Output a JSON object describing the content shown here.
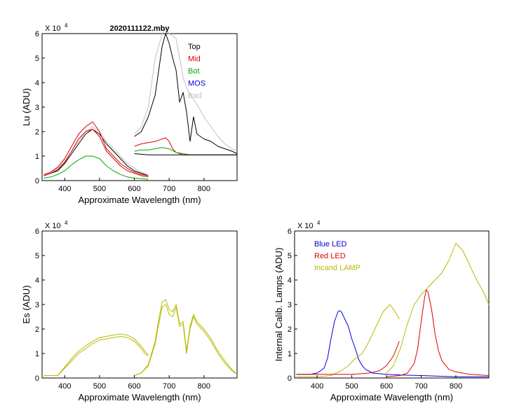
{
  "chart_data": [
    {
      "id": "lu",
      "type": "line",
      "title": "2020111122.mby",
      "xlabel": "Approximate Wavelength (nm)",
      "ylabel": "Lu (ADU)",
      "exponent_base": "X 10",
      "exponent_power": "4",
      "xlim": [
        335,
        895
      ],
      "ylim": [
        0,
        6
      ],
      "xticks": [
        400,
        500,
        600,
        700,
        800
      ],
      "yticks": [
        0,
        1,
        2,
        3,
        4,
        5,
        6
      ],
      "legend": [
        {
          "label": "Top",
          "color": "#000000"
        },
        {
          "label": "Mid",
          "color": "#dd0000"
        },
        {
          "label": "Bot",
          "color": "#00aa00"
        },
        {
          "label": "MOS",
          "color": "#0000dd"
        },
        {
          "label": "Bad",
          "color": "#c0c0c0"
        }
      ],
      "series": [
        {
          "name": "Bad",
          "color": "#c0c0c0",
          "x": [
            600,
            620,
            640,
            660,
            680,
            690,
            700,
            710,
            720,
            730,
            740,
            750,
            760,
            780,
            800,
            820,
            840,
            860,
            880,
            895
          ],
          "y": [
            1.9,
            2.2,
            3.0,
            5.0,
            6.0,
            6.2,
            6.0,
            5.9,
            5.8,
            5.0,
            4.2,
            3.8,
            3.5,
            3.1,
            2.6,
            2.2,
            1.8,
            1.5,
            1.3,
            1.2
          ]
        },
        {
          "name": "Top",
          "color": "#000000",
          "x": [
            600,
            620,
            640,
            660,
            680,
            690,
            700,
            710,
            720,
            730,
            740,
            750,
            760,
            770,
            780,
            800,
            820,
            840,
            860,
            880,
            895
          ],
          "y": [
            1.8,
            2.0,
            2.6,
            3.5,
            5.5,
            6.0,
            5.6,
            5.0,
            4.5,
            3.2,
            3.6,
            2.8,
            1.6,
            2.6,
            1.9,
            1.7,
            1.6,
            1.4,
            1.3,
            1.2,
            1.1
          ]
        },
        {
          "name": "Top",
          "color": "#000000",
          "x": [
            340,
            360,
            380,
            400,
            420,
            440,
            460,
            480,
            500,
            520,
            540,
            560,
            580,
            600,
            620,
            640
          ],
          "y": [
            0.2,
            0.3,
            0.4,
            0.7,
            1.1,
            1.5,
            1.9,
            2.1,
            1.9,
            1.5,
            1.2,
            0.9,
            0.6,
            0.4,
            0.3,
            0.2
          ]
        },
        {
          "name": "Bad",
          "color": "#c0c0c0",
          "x": [
            340,
            360,
            380,
            400,
            420,
            440,
            460,
            480,
            500,
            520,
            540,
            560,
            580,
            600,
            620,
            640
          ],
          "y": [
            0.25,
            0.35,
            0.5,
            0.8,
            1.2,
            1.6,
            2.0,
            2.2,
            2.0,
            1.6,
            1.3,
            1.0,
            0.7,
            0.5,
            0.35,
            0.25
          ]
        },
        {
          "name": "Mid",
          "color": "#dd0000",
          "x": [
            340,
            360,
            380,
            400,
            420,
            440,
            460,
            480,
            500,
            520,
            540,
            560,
            580,
            600,
            620,
            640
          ],
          "y": [
            0.25,
            0.35,
            0.55,
            0.9,
            1.4,
            1.9,
            2.2,
            2.4,
            2.0,
            1.3,
            1.0,
            0.7,
            0.5,
            0.35,
            0.25,
            0.2
          ]
        },
        {
          "name": "Mid",
          "color": "#dd0000",
          "x": [
            340,
            360,
            380,
            400,
            420,
            440,
            460,
            480,
            500,
            520,
            540,
            560,
            580,
            600,
            620,
            640
          ],
          "y": [
            0.2,
            0.3,
            0.45,
            0.75,
            1.2,
            1.7,
            2.0,
            2.1,
            1.8,
            1.2,
            0.9,
            0.6,
            0.4,
            0.3,
            0.2,
            0.15
          ]
        },
        {
          "name": "Bot",
          "color": "#00aa00",
          "x": [
            340,
            360,
            380,
            400,
            420,
            440,
            460,
            480,
            500,
            520,
            540,
            560,
            580,
            600,
            620,
            640
          ],
          "y": [
            0.1,
            0.15,
            0.25,
            0.4,
            0.65,
            0.85,
            1.0,
            1.0,
            0.9,
            0.6,
            0.4,
            0.25,
            0.15,
            0.1,
            0.08,
            0.05
          ]
        },
        {
          "name": "Mid",
          "color": "#dd0000",
          "x": [
            600,
            620,
            640,
            660,
            670,
            680,
            690,
            700,
            710,
            720,
            730,
            740,
            760,
            780,
            800,
            820,
            840,
            860,
            880,
            895
          ],
          "y": [
            1.4,
            1.5,
            1.55,
            1.6,
            1.65,
            1.7,
            1.75,
            1.6,
            1.3,
            1.15,
            1.1,
            1.05,
            1.05,
            1.05,
            1.05,
            1.05,
            1.05,
            1.05,
            1.05,
            1.05
          ]
        },
        {
          "name": "Bot",
          "color": "#00aa00",
          "x": [
            600,
            620,
            640,
            660,
            680,
            700,
            720,
            740,
            760,
            780,
            800,
            820,
            840,
            860,
            880,
            895
          ],
          "y": [
            1.2,
            1.25,
            1.25,
            1.3,
            1.35,
            1.3,
            1.15,
            1.1,
            1.05,
            1.05,
            1.05,
            1.05,
            1.05,
            1.05,
            1.05,
            1.05
          ]
        },
        {
          "name": "MOS",
          "color": "#000000",
          "x": [
            600,
            640,
            680,
            720,
            760,
            800,
            840,
            880,
            895
          ],
          "y": [
            1.1,
            1.05,
            1.05,
            1.05,
            1.05,
            1.05,
            1.05,
            1.05,
            1.05
          ]
        }
      ]
    },
    {
      "id": "es",
      "type": "line",
      "title": "",
      "xlabel": "Approximate Wavelength (nm)",
      "ylabel": "Es  (ADU)",
      "exponent_base": "X 10",
      "exponent_power": "4",
      "xlim": [
        335,
        895
      ],
      "ylim": [
        0,
        6
      ],
      "xticks": [
        400,
        500,
        600,
        700,
        800
      ],
      "yticks": [
        0,
        1,
        2,
        3,
        4,
        5,
        6
      ],
      "legend": [],
      "series": [
        {
          "name": "Es",
          "color": "#b8b800",
          "x": [
            340,
            380,
            400,
            420,
            440,
            460,
            480,
            500,
            520,
            540,
            560,
            580,
            600,
            620,
            630,
            640
          ],
          "y": [
            0.1,
            0.1,
            0.4,
            0.7,
            1.0,
            1.2,
            1.4,
            1.55,
            1.6,
            1.65,
            1.7,
            1.65,
            1.5,
            1.2,
            1.0,
            0.9
          ]
        },
        {
          "name": "Es",
          "color": "#b8b800",
          "x": [
            340,
            380,
            400,
            420,
            440,
            460,
            480,
            500,
            520,
            540,
            560,
            580,
            600,
            620,
            630,
            640
          ],
          "y": [
            0.1,
            0.1,
            0.45,
            0.8,
            1.1,
            1.3,
            1.5,
            1.65,
            1.7,
            1.75,
            1.8,
            1.75,
            1.6,
            1.3,
            1.1,
            0.95
          ]
        },
        {
          "name": "Es",
          "color": "#b8b800",
          "x": [
            600,
            620,
            640,
            660,
            670,
            680,
            690,
            700,
            710,
            720,
            730,
            740,
            750,
            760,
            770,
            780,
            800,
            820,
            840,
            860,
            880,
            895
          ],
          "y": [
            0.1,
            0.2,
            0.5,
            1.4,
            2.2,
            2.9,
            3.0,
            2.6,
            2.5,
            2.9,
            2.1,
            2.2,
            1.0,
            2.0,
            2.5,
            2.2,
            1.9,
            1.5,
            1.0,
            0.6,
            0.3,
            0.15
          ]
        },
        {
          "name": "Es",
          "color": "#b8b800",
          "x": [
            600,
            620,
            640,
            660,
            670,
            680,
            690,
            700,
            710,
            720,
            730,
            740,
            750,
            760,
            770,
            780,
            800,
            820,
            840,
            860,
            880,
            895
          ],
          "y": [
            0.1,
            0.2,
            0.55,
            1.5,
            2.4,
            3.1,
            3.2,
            2.8,
            2.7,
            3.0,
            2.2,
            2.3,
            1.1,
            2.1,
            2.6,
            2.3,
            2.0,
            1.6,
            1.1,
            0.7,
            0.35,
            0.15
          ]
        }
      ]
    },
    {
      "id": "lamps",
      "type": "line",
      "title": "",
      "xlabel": "Approximate Wavelength (nm)",
      "ylabel": "Internal Calib. Lamps  (ADU)",
      "exponent_base": "X 10",
      "exponent_power": "4",
      "xlim": [
        335,
        895
      ],
      "ylim": [
        0,
        6
      ],
      "xticks": [
        400,
        500,
        600,
        700,
        800
      ],
      "yticks": [
        0,
        1,
        2,
        3,
        4,
        5,
        6
      ],
      "legend": [
        {
          "label": "Blue LED",
          "color": "#0000dd"
        },
        {
          "label": "Red LED",
          "color": "#dd0000"
        },
        {
          "label": "Incand LAMP",
          "color": "#b8b800"
        }
      ],
      "series": [
        {
          "name": "Blue LED",
          "color": "#0000dd",
          "x": [
            340,
            380,
            400,
            420,
            430,
            440,
            450,
            460,
            465,
            470,
            480,
            490,
            500,
            510,
            520,
            530,
            540,
            560,
            600,
            640,
            700,
            800,
            895
          ],
          "y": [
            0.15,
            0.15,
            0.2,
            0.4,
            0.8,
            1.6,
            2.3,
            2.7,
            2.75,
            2.7,
            2.4,
            2.1,
            1.6,
            1.2,
            0.75,
            0.5,
            0.35,
            0.2,
            0.15,
            0.12,
            0.1,
            0.05,
            0.05
          ]
        },
        {
          "name": "Incand LAMP",
          "color": "#b8b800",
          "x": [
            340,
            400,
            440,
            470,
            490,
            510,
            530,
            550,
            570,
            590,
            610,
            625,
            637
          ],
          "y": [
            0.05,
            0.05,
            0.1,
            0.3,
            0.5,
            0.8,
            1.0,
            1.5,
            2.1,
            2.7,
            3.0,
            2.7,
            2.4
          ]
        },
        {
          "name": "Red LED",
          "color": "#dd0000",
          "x": [
            340,
            400,
            500,
            550,
            580,
            600,
            620,
            637
          ],
          "y": [
            0.15,
            0.15,
            0.15,
            0.2,
            0.3,
            0.5,
            0.9,
            1.5
          ]
        },
        {
          "name": "Incand LAMP",
          "color": "#b8b800",
          "x": [
            600,
            620,
            640,
            660,
            680,
            700,
            720,
            740,
            760,
            780,
            800,
            820,
            840,
            860,
            880,
            895
          ],
          "y": [
            0.2,
            0.5,
            1.2,
            2.2,
            3.0,
            3.4,
            3.7,
            4.0,
            4.3,
            4.8,
            5.5,
            5.2,
            4.6,
            4.0,
            3.5,
            3.0
          ]
        },
        {
          "name": "Red LED",
          "color": "#dd0000",
          "x": [
            600,
            640,
            660,
            680,
            690,
            700,
            710,
            715,
            720,
            730,
            740,
            750,
            760,
            780,
            800,
            840,
            895
          ],
          "y": [
            0.05,
            0.1,
            0.2,
            0.6,
            1.2,
            2.3,
            3.3,
            3.6,
            3.5,
            2.8,
            1.8,
            1.1,
            0.7,
            0.35,
            0.25,
            0.15,
            0.1
          ]
        }
      ]
    }
  ]
}
